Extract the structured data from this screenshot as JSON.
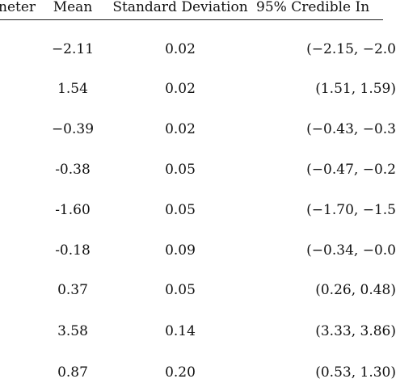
{
  "table": {
    "headers": {
      "parameter": "neter",
      "mean": "Mean",
      "sd": "Standard Deviation",
      "ci": "95% Credible In"
    },
    "rows": [
      {
        "mean": "−2.11",
        "sd": "0.02",
        "ci": "(−2.15, −2.0"
      },
      {
        "mean": "1.54",
        "sd": "0.02",
        "ci": "(1.51, 1.59)"
      },
      {
        "mean": "−0.39",
        "sd": "0.02",
        "ci": "(−0.43, −0.3"
      },
      {
        "mean": "-0.38",
        "sd": "0.05",
        "ci": "(−0.47, −0.2"
      },
      {
        "mean": "-1.60",
        "sd": "0.05",
        "ci": "(−1.70, −1.5"
      },
      {
        "mean": "-0.18",
        "sd": "0.09",
        "ci": "(−0.34, −0.0"
      },
      {
        "mean": "0.37",
        "sd": "0.05",
        "ci": "(0.26, 0.48)"
      },
      {
        "mean": "3.58",
        "sd": "0.14",
        "ci": "(3.33, 3.86)"
      },
      {
        "mean": "0.87",
        "sd": "0.20",
        "ci": "(0.53, 1.30)"
      }
    ]
  }
}
